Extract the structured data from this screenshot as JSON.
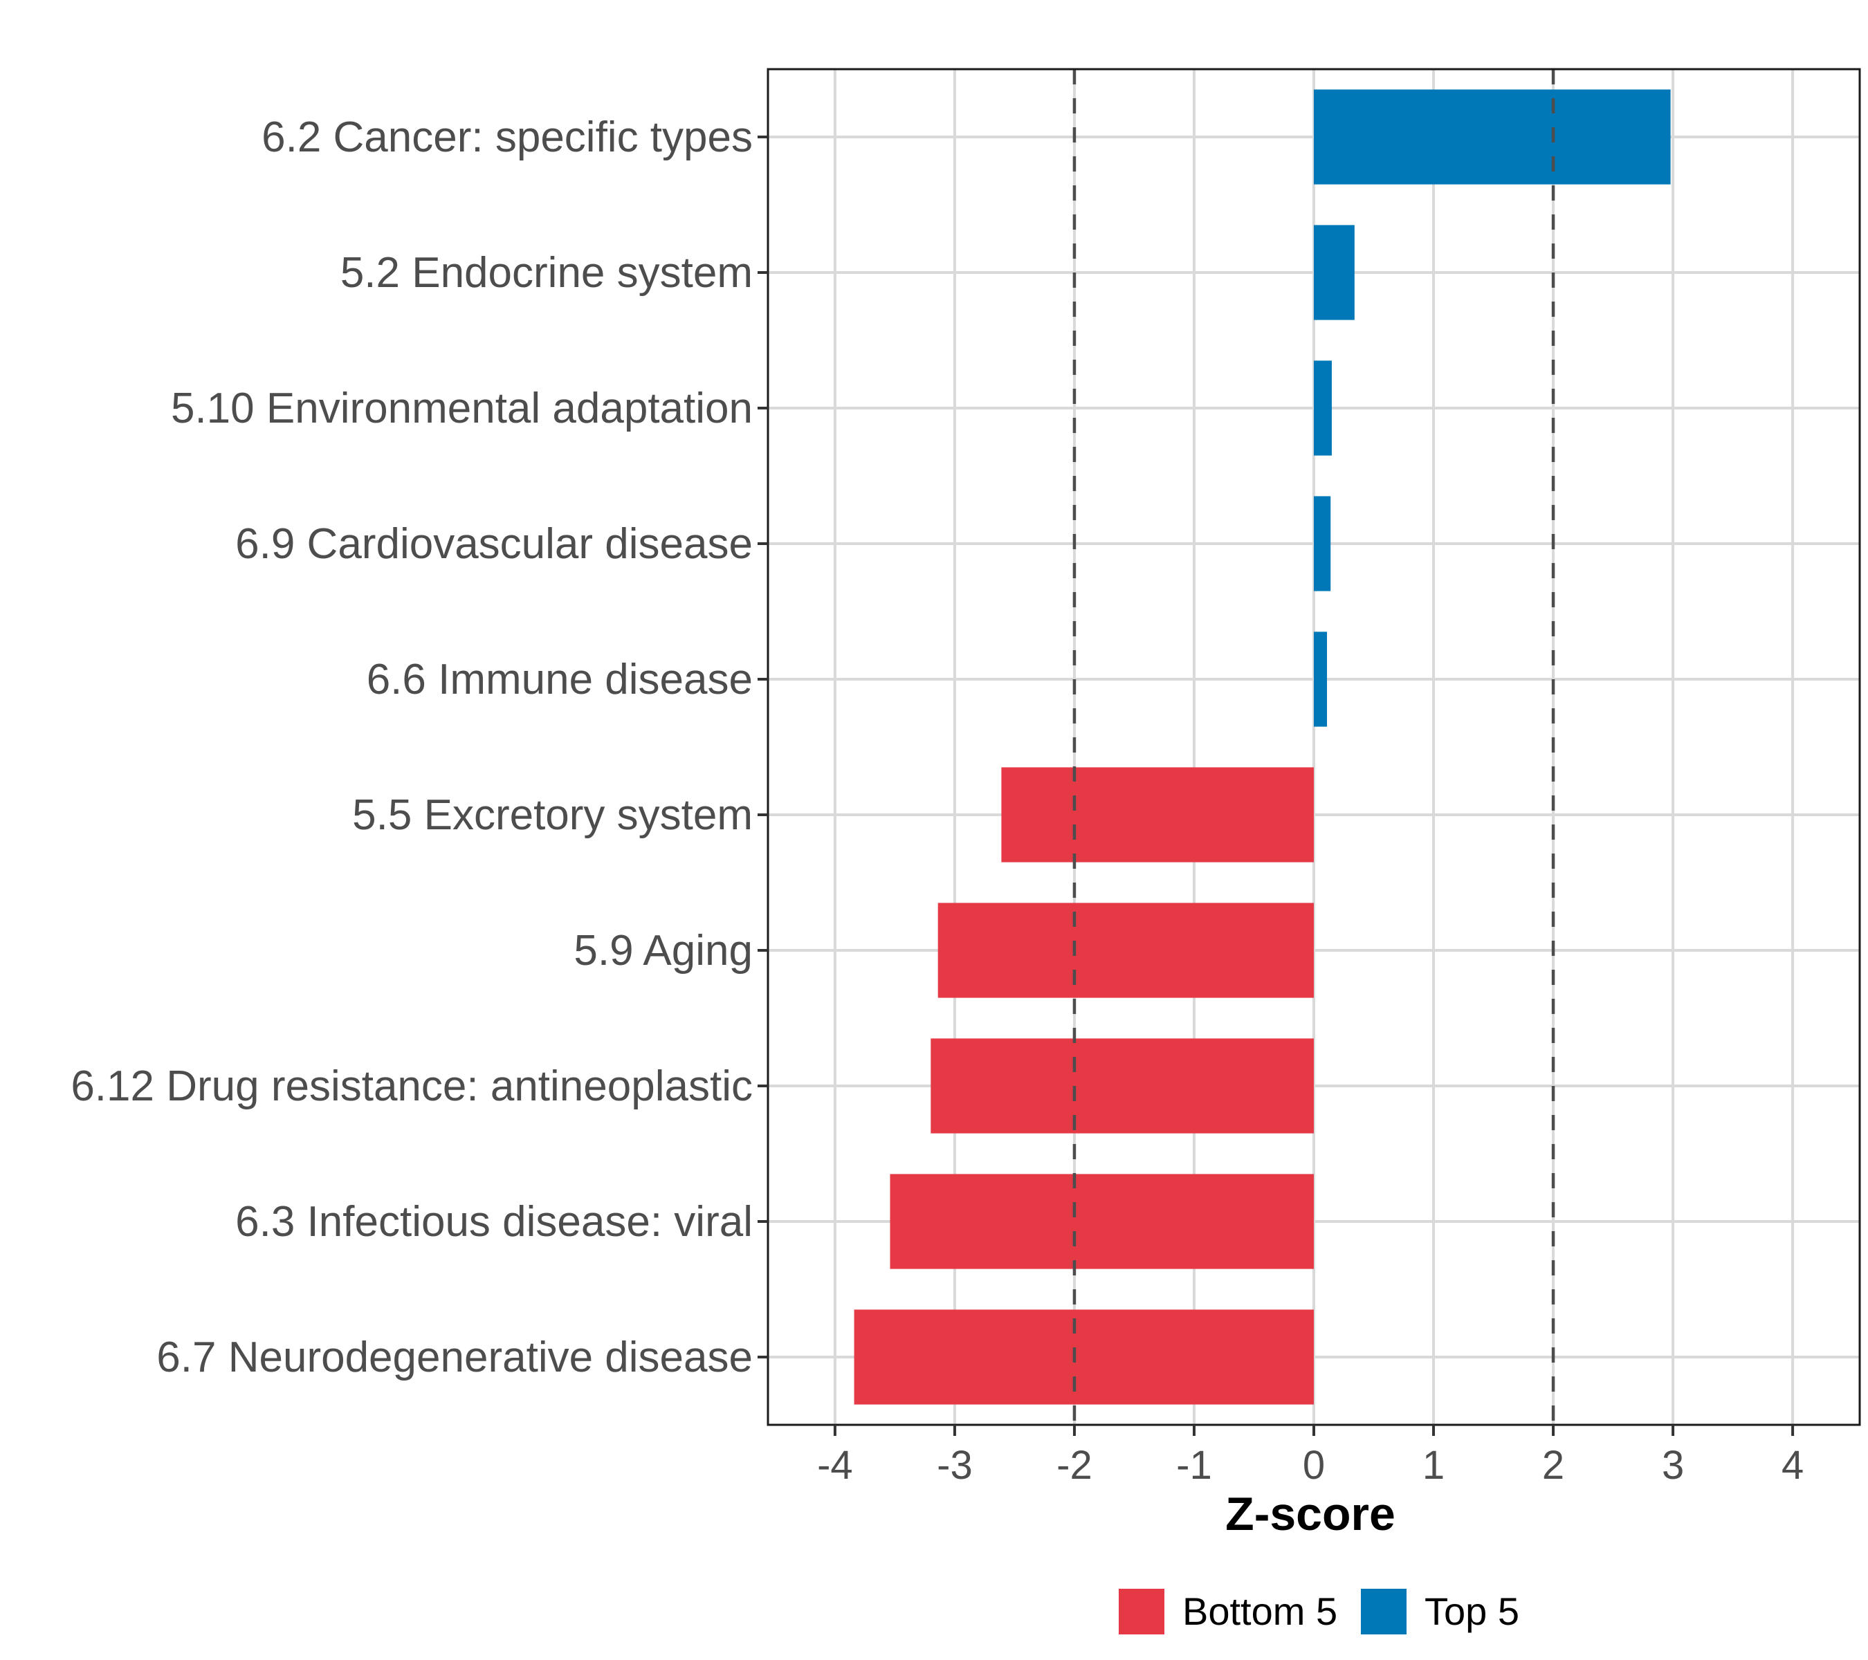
{
  "chart_data": {
    "type": "bar",
    "orientation": "horizontal",
    "title": "",
    "xlabel": "Z-score",
    "ylabel": "",
    "xlim": [
      -4.56,
      4.56
    ],
    "xticks": [
      -4,
      -3,
      -2,
      -1,
      0,
      1,
      2,
      3,
      4
    ],
    "xtick_labels": [
      "-4",
      "-3",
      "-2",
      "-1",
      "0",
      "1",
      "2",
      "3",
      "4"
    ],
    "grid": true,
    "reference_lines": [
      -2,
      2
    ],
    "categories": [
      "6.2 Cancer: specific types",
      "5.2 Endocrine system",
      "5.10 Environmental adaptation",
      "6.9 Cardiovascular disease",
      "6.6 Immune disease",
      "5.5 Excretory system",
      "5.9 Aging",
      "6.12 Drug resistance: antineoplastic",
      "6.3 Infectious disease: viral",
      "6.7 Neurodegenerative disease"
    ],
    "values": [
      2.98,
      0.34,
      0.15,
      0.14,
      0.11,
      -2.61,
      -3.14,
      -3.2,
      -3.54,
      -3.84
    ],
    "groups": [
      "Top 5",
      "Top 5",
      "Top 5",
      "Top 5",
      "Top 5",
      "Bottom 5",
      "Bottom 5",
      "Bottom 5",
      "Bottom 5",
      "Bottom 5"
    ],
    "legend": {
      "position": "bottom",
      "entries": [
        {
          "label": "Bottom 5",
          "color": "#E63946"
        },
        {
          "label": "Top 5",
          "color": "#0077B6"
        }
      ]
    },
    "colors": {
      "Top 5": "#0077B6",
      "Bottom 5": "#E63946"
    }
  }
}
